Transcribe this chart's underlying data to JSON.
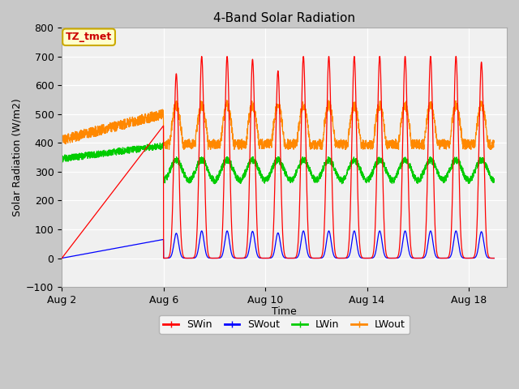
{
  "title": "4-Band Solar Radiation",
  "xlabel": "Time",
  "ylabel": "Solar Radiation (W/m2)",
  "ylim": [
    -100,
    800
  ],
  "yticks": [
    -100,
    0,
    100,
    200,
    300,
    400,
    500,
    600,
    700,
    800
  ],
  "fig_bg": "#c8c8c8",
  "plot_bg": "#f0f0f0",
  "grid_color": "#ffffff",
  "annotation_text": "TZ_tmet",
  "annotation_color": "#cc0000",
  "annotation_bg": "#ffffcc",
  "annotation_border": "#ccaa00",
  "colors": {
    "SWin": "#ff0000",
    "SWout": "#0000ff",
    "LWin": "#00cc00",
    "LWout": "#ff8800"
  },
  "legend": [
    "SWin",
    "SWout",
    "LWin",
    "LWout"
  ],
  "xtick_days": [
    2,
    6,
    10,
    14,
    18
  ],
  "xtick_labels": [
    "Aug 2",
    "Aug 6",
    "Aug 10",
    "Aug 14",
    "Aug 18"
  ],
  "xlim_start": 2,
  "xlim_end": 19.5,
  "t_start": 2.0,
  "t_end": 19.0,
  "hours_per_day": 24,
  "n_points_per_hour": 6
}
